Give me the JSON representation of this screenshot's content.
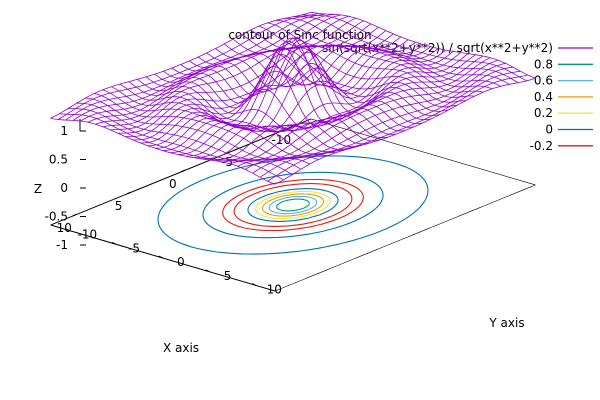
{
  "chart_data": {
    "type": "surface",
    "title": "contour of Sinc function",
    "function": "sin(sqrt(x**2+y**2)) / sqrt(x**2+y**2)",
    "xlabel": "X axis",
    "ylabel": "Y axis",
    "zlabel": "Z",
    "x_range": [
      -12,
      12
    ],
    "y_range": [
      -12,
      12
    ],
    "z_range": [
      -1.5,
      1
    ],
    "x_ticks": [
      "-10",
      "-5",
      "0",
      "5",
      "10"
    ],
    "y_ticks": [
      "-10",
      "-5",
      "0",
      "5",
      "10"
    ],
    "z_ticks": [
      "1",
      "0.5",
      "0",
      "-0.5",
      "-1"
    ],
    "grid_samples": 30,
    "contour_levels": [
      0.8,
      0.6,
      0.4,
      0.2,
      0,
      -0.2
    ],
    "legend": {
      "placement": "top-right",
      "entries": [
        {
          "label": "sin(sqrt(x**2+y**2)) / sqrt(x**2+y**2)",
          "color": "#9400d3"
        },
        {
          "label": "0.8",
          "color": "#009e73"
        },
        {
          "label": "0.6",
          "color": "#56b4e9"
        },
        {
          "label": "0.4",
          "color": "#e69f00"
        },
        {
          "label": "0.2",
          "color": "#f0e442"
        },
        {
          "label": "0",
          "color": "#0072b2"
        },
        {
          "label": "-0.2",
          "color": "#e51e10"
        }
      ]
    }
  }
}
